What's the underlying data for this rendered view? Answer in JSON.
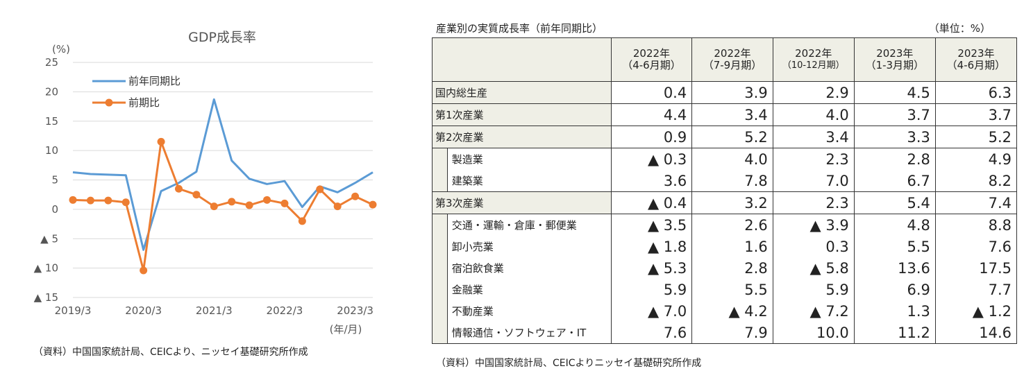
{
  "chart_data": {
    "type": "line",
    "title": "GDP成長率",
    "y_unit": "(%)",
    "x_unit": "(年/月)",
    "ylim": [
      -15,
      25
    ],
    "y_ticks": [
      25,
      20,
      15,
      10,
      5,
      0,
      -5,
      -10,
      -15
    ],
    "y_tick_labels": [
      "25",
      "20",
      "15",
      "10",
      "5",
      "0",
      "▲ 5",
      "▲ 10",
      "▲ 15"
    ],
    "x_tick_labels": [
      "2019/3",
      "2020/3",
      "2021/3",
      "2022/3",
      "2023/3"
    ],
    "x_tick_index": [
      0,
      4,
      8,
      12,
      16
    ],
    "grid": true,
    "legend_position": "top-left",
    "x": [
      "2019/3",
      "2019/6",
      "2019/9",
      "2019/12",
      "2020/3",
      "2020/6",
      "2020/9",
      "2020/12",
      "2021/3",
      "2021/6",
      "2021/9",
      "2021/12",
      "2022/3",
      "2022/6",
      "2022/9",
      "2022/12",
      "2023/3",
      "2023/6"
    ],
    "series": [
      {
        "name": "前年同期比",
        "color": "#5b9bd5",
        "marker": false,
        "values": [
          6.3,
          6.0,
          5.9,
          5.8,
          -6.9,
          3.1,
          4.5,
          6.4,
          18.7,
          8.3,
          5.2,
          4.3,
          4.8,
          0.4,
          3.9,
          2.9,
          4.5,
          6.3
        ]
      },
      {
        "name": "前期比",
        "color": "#ed7d31",
        "marker": true,
        "values": [
          1.6,
          1.5,
          1.5,
          1.2,
          -10.4,
          11.5,
          3.5,
          2.5,
          0.5,
          1.3,
          0.7,
          1.6,
          1.0,
          -2.0,
          3.4,
          0.5,
          2.2,
          0.8
        ]
      }
    ]
  },
  "chart_source": "（資料）中国国家統計局、CEICより、ニッセイ基礎研究所作成",
  "table": {
    "title": "産業別の実質成長率（前年同期比）",
    "unit": "（単位：%）",
    "headers": [
      {
        "year": "2022年",
        "period": "（4-6月期）"
      },
      {
        "year": "2022年",
        "period": "（7-9月期）"
      },
      {
        "year": "2022年",
        "period": "（10-12月期）"
      },
      {
        "year": "2023年",
        "period": "（1-3月期）"
      },
      {
        "year": "2023年",
        "period": "（4-6月期）"
      }
    ],
    "rows": [
      {
        "label": "国内総生産",
        "values": [
          "0.4",
          "3.9",
          "2.9",
          "4.5",
          "6.3"
        ]
      },
      {
        "label": "第1次産業",
        "values": [
          "4.4",
          "3.4",
          "4.0",
          "3.7",
          "3.7"
        ]
      },
      {
        "label": "第2次産業",
        "values": [
          "0.9",
          "5.2",
          "3.4",
          "3.3",
          "5.2"
        ]
      },
      {
        "label": "製造業",
        "values": [
          "▲ 0.3",
          "4.0",
          "2.3",
          "2.8",
          "4.9"
        ]
      },
      {
        "label": "建築業",
        "values": [
          "3.6",
          "7.8",
          "7.0",
          "6.7",
          "8.2"
        ]
      },
      {
        "label": "第3次産業",
        "values": [
          "▲ 0.4",
          "3.2",
          "2.3",
          "5.4",
          "7.4"
        ]
      },
      {
        "label": "交通・運輸・倉庫・郵便業",
        "values": [
          "▲ 3.5",
          "2.6",
          "▲ 3.9",
          "4.8",
          "8.8"
        ]
      },
      {
        "label": "卸小売業",
        "values": [
          "▲ 1.8",
          "1.6",
          "0.3",
          "5.5",
          "7.6"
        ]
      },
      {
        "label": "宿泊飲食業",
        "values": [
          "▲ 5.3",
          "2.8",
          "▲ 5.8",
          "13.6",
          "17.5"
        ]
      },
      {
        "label": "金融業",
        "values": [
          "5.9",
          "5.5",
          "5.9",
          "6.9",
          "7.7"
        ]
      },
      {
        "label": "不動産業",
        "values": [
          "▲ 7.0",
          "▲ 4.2",
          "▲ 7.2",
          "1.3",
          "▲ 1.2"
        ]
      },
      {
        "label": "情報通信・ソフトウェア・IT",
        "values": [
          "7.6",
          "7.9",
          "10.0",
          "11.2",
          "14.6"
        ]
      }
    ],
    "source": "（資料）中国国家統計局、CEICよりニッセイ基礎研究所作成"
  }
}
